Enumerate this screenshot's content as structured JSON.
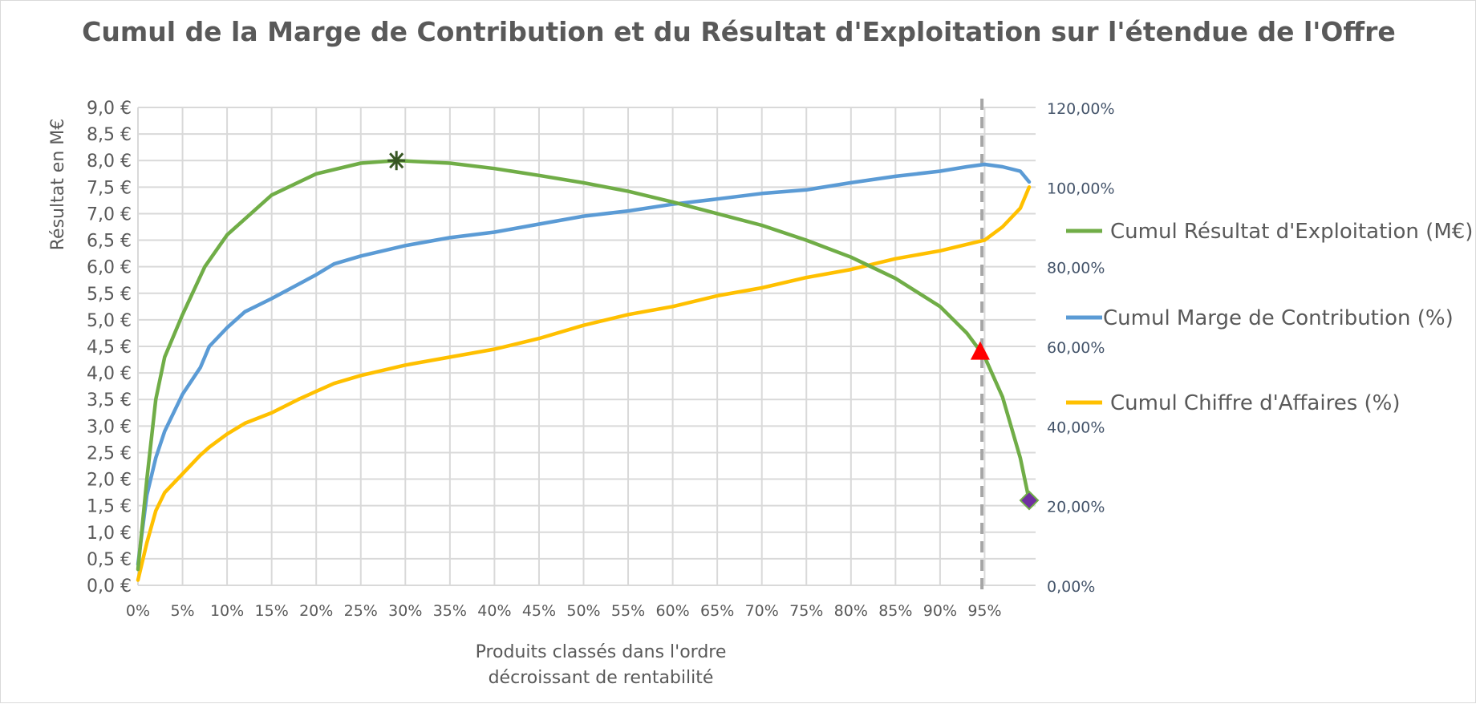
{
  "chart_data": {
    "type": "line",
    "title": "Cumul de la Marge de Contribution et du Résultat d'Exploitation sur l'étendue de l'Offre",
    "xlabel_lines": [
      "Produits classés dans l'ordre",
      "décroissant de rentabilité"
    ],
    "ylabel": "Résultat en M€",
    "x_ticks": [
      "0%",
      "5%",
      "10%",
      "15%",
      "20%",
      "25%",
      "30%",
      "35%",
      "40%",
      "45%",
      "50%",
      "55%",
      "60%",
      "65%",
      "70%",
      "75%",
      "80%",
      "85%",
      "90%",
      "95%"
    ],
    "xlim": [
      0,
      100
    ],
    "y_left_ticks": [
      "0,0 €",
      "0,5 €",
      "1,0 €",
      "1,5 €",
      "2,0 €",
      "2,5 €",
      "3,0 €",
      "3,5 €",
      "4,0 €",
      "4,5 €",
      "5,0 €",
      "5,5 €",
      "6,0 €",
      "6,5 €",
      "7,0 €",
      "7,5 €",
      "8,0 €",
      "8,5 €",
      "9,0 €"
    ],
    "y_left_lim": [
      0,
      9
    ],
    "y_right_ticks": [
      "0,00%",
      "20,00%",
      "40,00%",
      "60,00%",
      "80,00%",
      "100,00%",
      "120,00%"
    ],
    "y_right_lim": [
      0,
      120
    ],
    "grid": true,
    "legend_position": "right",
    "series": [
      {
        "name": "Cumul Résultat d'Exploitation (M€)",
        "axis": "left",
        "color": "#70AD47",
        "x": [
          0,
          1,
          2,
          3,
          5,
          7.5,
          10,
          15,
          20,
          25,
          29,
          35,
          40,
          45,
          50,
          55,
          60,
          65,
          70,
          75,
          80,
          85,
          90,
          93,
          95,
          97,
          99,
          100
        ],
        "y": [
          0.3,
          2.0,
          3.5,
          4.3,
          5.1,
          6.0,
          6.6,
          7.35,
          7.75,
          7.95,
          8.0,
          7.95,
          7.85,
          7.72,
          7.58,
          7.42,
          7.22,
          7.0,
          6.78,
          6.5,
          6.18,
          5.78,
          5.25,
          4.75,
          4.3,
          3.55,
          2.4,
          1.6
        ]
      },
      {
        "name": "Cumul Marge de Contribution (%)",
        "axis": "right",
        "color": "#5B9BD5",
        "x": [
          0,
          1,
          2,
          3,
          5,
          7,
          8,
          10,
          12,
          15,
          20,
          22,
          25,
          30,
          35,
          40,
          45,
          50,
          55,
          60,
          65,
          70,
          75,
          80,
          85,
          90,
          93,
          95,
          97,
          99,
          100
        ],
        "y": [
          5.3,
          22.7,
          32,
          38.7,
          48,
          54.7,
          60,
          64.7,
          68.7,
          72,
          78,
          80.7,
          82.7,
          85.3,
          87.3,
          88.7,
          90.7,
          92.7,
          94,
          95.7,
          97,
          98.4,
          99.3,
          101.1,
          102.7,
          104,
          105.1,
          105.7,
          105.1,
          104,
          101.3
        ]
      },
      {
        "name": "Cumul Chiffre d'Affaires (%)",
        "axis": "right",
        "color": "#FFC000",
        "x": [
          0,
          1,
          2,
          3,
          5,
          7,
          8,
          10,
          12,
          15,
          18,
          20,
          22,
          25,
          30,
          35,
          40,
          45,
          50,
          55,
          60,
          65,
          70,
          75,
          80,
          85,
          90,
          95,
          97,
          99,
          100
        ],
        "y": [
          1.3,
          10.7,
          18.7,
          23.3,
          28,
          32.7,
          34.7,
          38,
          40.7,
          43.3,
          46.7,
          48.7,
          50.7,
          52.7,
          55.3,
          57.3,
          59.3,
          62,
          65.3,
          68,
          70,
          72.7,
          74.7,
          77.3,
          79.3,
          82,
          84,
          86.7,
          90,
          94.7,
          100
        ]
      }
    ],
    "markers": [
      {
        "type": "star",
        "x": 29,
        "y": 8.0,
        "axis": "left",
        "color": "#375623"
      },
      {
        "type": "triangle",
        "x": 94.5,
        "y": 4.4,
        "axis": "left",
        "color": "#FF0000"
      },
      {
        "type": "diamond",
        "x": 100,
        "y": 1.6,
        "axis": "left",
        "color": "#7030A0"
      }
    ],
    "reference_line": {
      "x": 94.7,
      "style": "dashed",
      "color": "#A6A6A6"
    }
  }
}
